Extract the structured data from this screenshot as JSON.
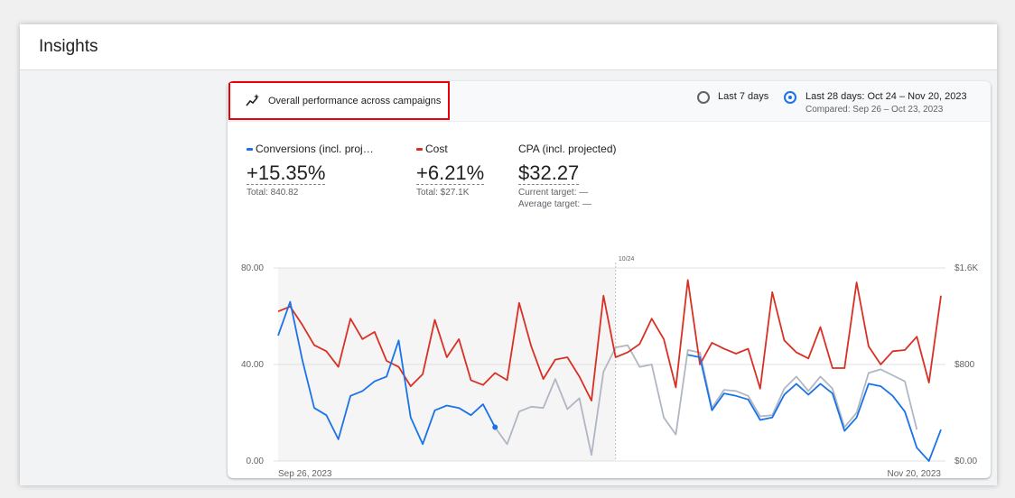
{
  "app": {
    "title": "Insights"
  },
  "card": {
    "heading": "Overall performance across campaigns",
    "range_options": [
      {
        "label": "Last 7 days",
        "selected": false
      },
      {
        "label": "Last 28 days: Oct 24 – Nov 20, 2023",
        "selected": true
      }
    ],
    "compared": "Compared: Sep 26 – Oct 23, 2023"
  },
  "metrics": [
    {
      "name": "Conversions (incl. proj…",
      "value": "+15.35%",
      "sub": "Total: 840.82",
      "color": "#1a73e8"
    },
    {
      "name": "Cost",
      "value": "+6.21%",
      "sub": "Total: $27.1K",
      "color": "#d93025"
    },
    {
      "name": "CPA (incl. projected)",
      "value": "$32.27",
      "sub1": "Current target: —",
      "sub2": "Average target: —"
    }
  ],
  "colors": {
    "conversions": "#1a73e8",
    "cost": "#d93025",
    "projected": "#b0b7c3",
    "accent": "#1a73e8"
  },
  "chart_data": {
    "type": "line",
    "left_axis": {
      "ticks": [
        "80.00",
        "40.00",
        "0.00"
      ],
      "ylim": [
        0,
        80
      ]
    },
    "right_axis": {
      "ticks": [
        "$1.6K",
        "$800",
        "$0.00"
      ],
      "ylim": [
        0,
        1600
      ]
    },
    "x_start_label": "Sep 26, 2023",
    "x_end_label": "Nov 20, 2023",
    "marker_label": "10/24",
    "marker_index": 28,
    "grid": true,
    "series": [
      {
        "name": "Cost",
        "axis": "right",
        "values": [
          1240,
          1280,
          1130,
          960,
          910,
          780,
          1180,
          1010,
          1070,
          830,
          780,
          620,
          720,
          1170,
          860,
          1010,
          670,
          630,
          730,
          670,
          1310,
          950,
          680,
          840,
          860,
          700,
          500,
          1370,
          860,
          900,
          970,
          1180,
          1010,
          610,
          1500,
          800,
          980,
          930,
          890,
          930,
          600,
          1400,
          1000,
          900,
          850,
          1110,
          770,
          770,
          1480,
          950,
          800,
          910,
          920,
          1030,
          650,
          1370
        ]
      },
      {
        "name": "Conversions",
        "axis": "left",
        "values": [
          52.0,
          66.0,
          42.0,
          22.0,
          19.0,
          9.0,
          27.0,
          29.0,
          33.0,
          35.0,
          50.0,
          18.0,
          7.0,
          21.0,
          23.0,
          22.0,
          19.0,
          23.5,
          14.0,
          null,
          null,
          null,
          null,
          null,
          null,
          null,
          null,
          null,
          null,
          null,
          null,
          null,
          null,
          null,
          44.0,
          43.0,
          21.0,
          28.0,
          27.0,
          25.5,
          17.0,
          18.0,
          27.5,
          32.0,
          27.5,
          32.0,
          28.0,
          12.5,
          18.0,
          32.0,
          31.0,
          27.0,
          20.5,
          5.5,
          0.0,
          13.0
        ]
      },
      {
        "name": "Conversions (projected)",
        "axis": "left",
        "values": [
          null,
          null,
          null,
          null,
          null,
          null,
          null,
          null,
          null,
          null,
          null,
          null,
          null,
          null,
          null,
          null,
          null,
          null,
          14.0,
          7.0,
          20.5,
          22.5,
          22.0,
          34.0,
          21.5,
          26.0,
          2.5,
          37.0,
          47.0,
          48.0,
          39.0,
          40.0,
          18.0,
          11.0,
          46.0,
          45.0,
          22.0,
          29.5,
          29.0,
          27.0,
          18.5,
          19.0,
          30.0,
          35.0,
          29.0,
          35.0,
          30.0,
          14.0,
          20.0,
          36.5,
          38.0,
          35.5,
          33.0,
          13.0,
          null,
          null
        ]
      }
    ]
  }
}
